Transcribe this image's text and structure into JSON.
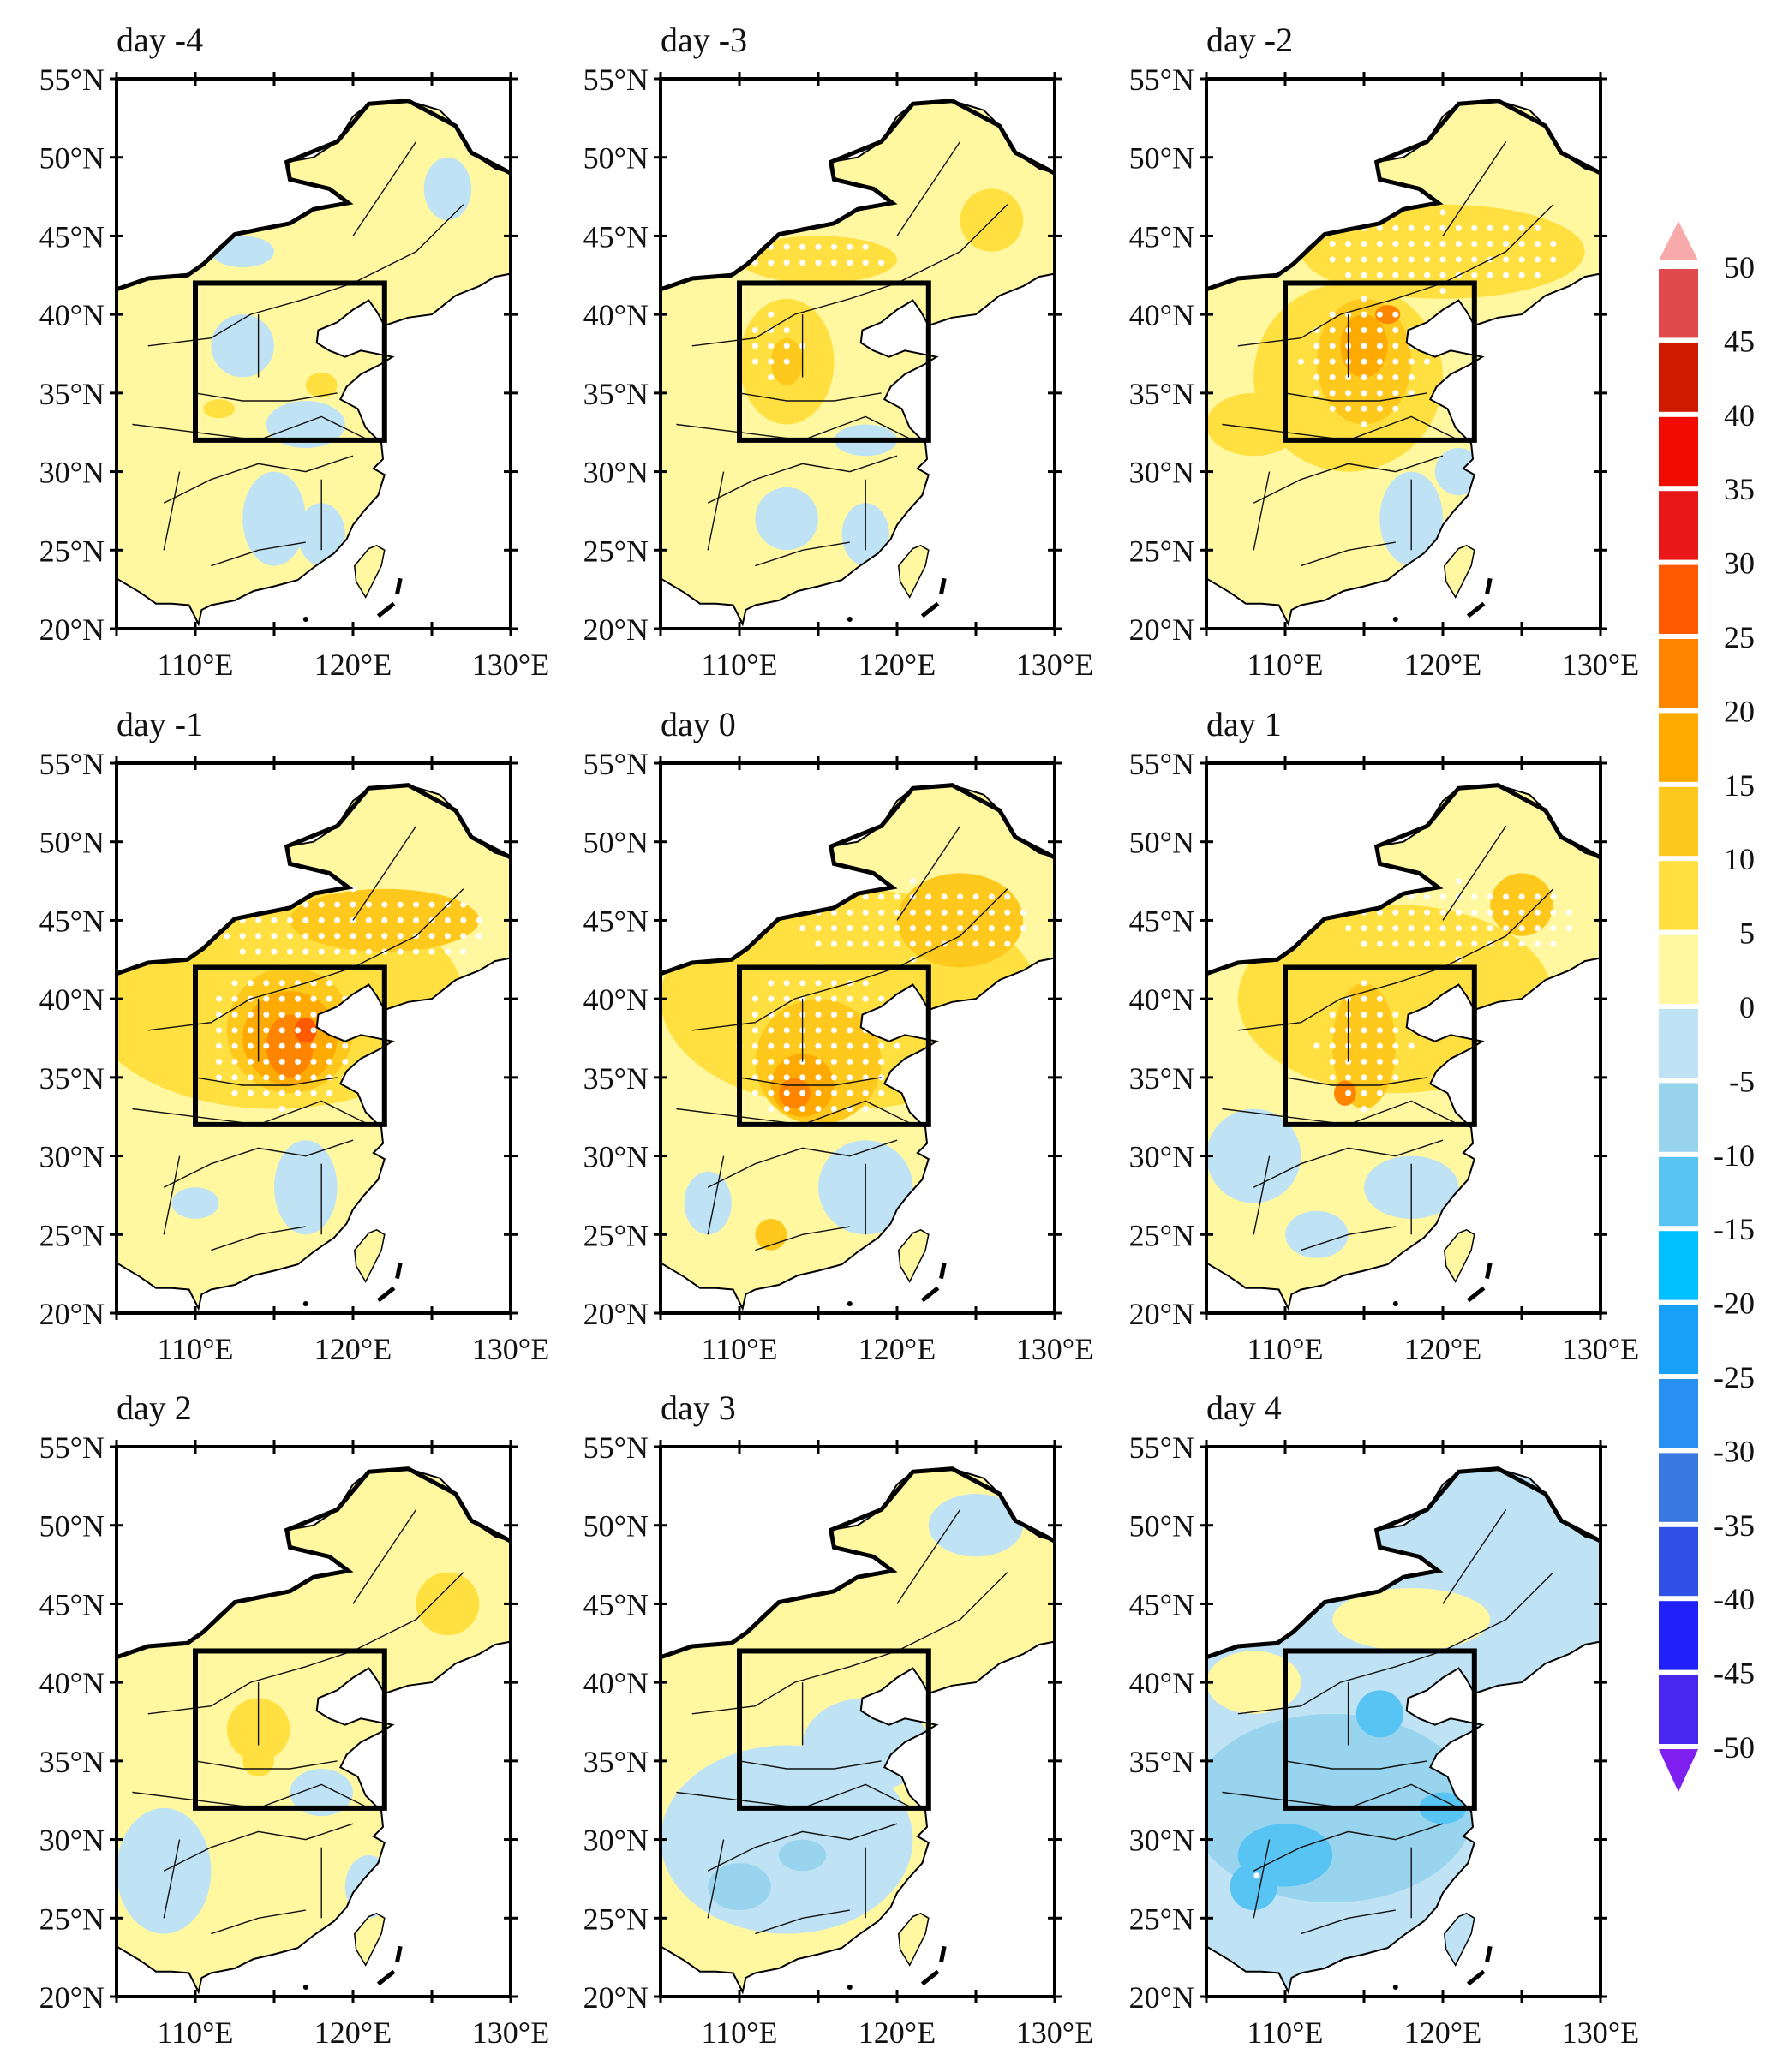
{
  "chart_data": {
    "type": "heatmap",
    "title": "",
    "lon_range": [
      105,
      130
    ],
    "lat_range": [
      20,
      55
    ],
    "lon_ticks": [
      110,
      120,
      130
    ],
    "lon_tick_labels": [
      "110°E",
      "120°E",
      "130°E"
    ],
    "lat_ticks": [
      55,
      50,
      45,
      40,
      35,
      30,
      25,
      20
    ],
    "lat_tick_labels": [
      "55°N",
      "50°N",
      "45°N",
      "40°N",
      "35°N",
      "30°N",
      "25°N",
      "20°N"
    ],
    "box_region": {
      "lon": [
        110,
        122
      ],
      "lat": [
        32,
        42
      ]
    },
    "colorbar": {
      "labels": [
        "50",
        "45",
        "40",
        "35",
        "30",
        "25",
        "20",
        "15",
        "10",
        "5",
        "0",
        "-5",
        "-10",
        "-15",
        "-20",
        "-25",
        "-30",
        "-35",
        "-40",
        "-45",
        "-50"
      ],
      "over_color": "#f8aaaa",
      "under_color": "#8020f0",
      "colors": [
        "#e04a4a",
        "#d01a00",
        "#f00c00",
        "#e81818",
        "#ff5a00",
        "#ff8400",
        "#ffaa00",
        "#ffc81c",
        "#ffe040",
        "#fff8a0",
        "#bfe3f5",
        "#98d4ee",
        "#58c4f4",
        "#00c0ff",
        "#18a0f8",
        "#2890f0",
        "#3878e0",
        "#3050e8",
        "#2020f8",
        "#4828f0"
      ],
      "level_bounds": [
        [
          45,
          50
        ],
        [
          40,
          45
        ],
        [
          35,
          40
        ],
        [
          30,
          35
        ],
        [
          25,
          30
        ],
        [
          20,
          25
        ],
        [
          15,
          20
        ],
        [
          10,
          15
        ],
        [
          5,
          10
        ],
        [
          0,
          5
        ],
        [
          -5,
          0
        ],
        [
          -10,
          -5
        ],
        [
          -15,
          -10
        ],
        [
          -20,
          -15
        ],
        [
          -25,
          -20
        ],
        [
          -30,
          -25
        ],
        [
          -35,
          -30
        ],
        [
          -40,
          -35
        ],
        [
          -45,
          -40
        ],
        [
          -50,
          -45
        ]
      ]
    },
    "panels": [
      {
        "title": "day -4",
        "base": 2.5,
        "anomalies": [
          [
            113,
            38,
            2,
            2,
            -2.5
          ],
          [
            117,
            33,
            2.5,
            1.5,
            -2.5
          ],
          [
            115,
            27,
            2,
            3,
            -2.5
          ],
          [
            118,
            26,
            1.5,
            2,
            -2.5
          ],
          [
            126,
            48,
            1.5,
            2,
            -2.5
          ],
          [
            113,
            44,
            2,
            1,
            -2.5
          ],
          [
            111.5,
            34,
            1,
            0.6,
            7.5
          ],
          [
            118,
            35.5,
            1,
            0.8,
            7.5
          ]
        ],
        "stipple": []
      },
      {
        "title": "day -3",
        "base": 2.5,
        "anomalies": [
          [
            115,
            43.5,
            5,
            1.5,
            7.5
          ],
          [
            113,
            37,
            3,
            4,
            7.5
          ],
          [
            126,
            46,
            2,
            2,
            7.5
          ],
          [
            113,
            37,
            1,
            1.5,
            12.5
          ],
          [
            113,
            27,
            2,
            2,
            -2.5
          ],
          [
            118,
            26,
            1.5,
            2,
            -2.5
          ],
          [
            118,
            32,
            2,
            1,
            -2.5
          ]
        ],
        "stipple": [
          [
            115,
            43.5,
            5,
            1.2
          ],
          [
            112,
            38,
            2,
            2
          ]
        ]
      },
      {
        "title": "day -2",
        "base": 2.5,
        "anomalies": [
          [
            120,
            44,
            9,
            3,
            7.5
          ],
          [
            114,
            36,
            6,
            6,
            7.5
          ],
          [
            115,
            37,
            3,
            4,
            12.5
          ],
          [
            108,
            33,
            3,
            2,
            7.5
          ],
          [
            115,
            38,
            1.5,
            2,
            17.5
          ],
          [
            116.5,
            40,
            0.8,
            0.6,
            22.5
          ],
          [
            118,
            27,
            2,
            3,
            -2.5
          ],
          [
            121,
            30,
            1.5,
            1.5,
            -2.5
          ]
        ],
        "stipple": [
          [
            120,
            44,
            8,
            2.5
          ],
          [
            115,
            37,
            4,
            4
          ]
        ]
      },
      {
        "title": "day -1",
        "base": 2.5,
        "anomalies": [
          [
            115,
            40,
            12,
            7,
            7.5
          ],
          [
            116,
            38,
            4,
            4,
            12.5
          ],
          [
            122,
            45,
            6,
            2,
            12.5
          ],
          [
            116,
            37.5,
            3,
            3,
            17.5
          ],
          [
            116,
            37,
            1.5,
            2,
            22.5
          ],
          [
            117,
            38,
            0.7,
            0.8,
            27.5
          ],
          [
            117,
            28,
            2,
            3,
            -2.5
          ],
          [
            110,
            27,
            1.5,
            1,
            -2.5
          ]
        ],
        "stipple": [
          [
            120,
            44.5,
            9,
            2.5
          ],
          [
            115.5,
            37.5,
            5,
            4.5
          ]
        ]
      },
      {
        "title": "day 0",
        "base": 2.5,
        "anomalies": [
          [
            117,
            40,
            12,
            7,
            7.5
          ],
          [
            124,
            45,
            4,
            3,
            12.5
          ],
          [
            115,
            36,
            4,
            4,
            12.5
          ],
          [
            114,
            34.5,
            2,
            2,
            17.5
          ],
          [
            113.5,
            34,
            1,
            1,
            22.5
          ],
          [
            118,
            28,
            3,
            3,
            -2.5
          ],
          [
            108,
            27,
            1.5,
            2,
            -2.5
          ],
          [
            112,
            25,
            1,
            1,
            12.5
          ]
        ],
        "stipple": [
          [
            121,
            45,
            8,
            2.5
          ],
          [
            115,
            37,
            5,
            5
          ]
        ]
      },
      {
        "title": "day 1",
        "base": 2.5,
        "anomalies": [
          [
            117,
            40,
            10,
            6,
            7.5
          ],
          [
            115,
            37,
            2,
            4,
            12.5
          ],
          [
            125,
            46,
            2,
            2,
            12.5
          ],
          [
            113.8,
            34,
            0.7,
            0.8,
            22.5
          ],
          [
            108,
            30,
            3,
            3,
            -2.5
          ],
          [
            118,
            28,
            3,
            2,
            -2.5
          ],
          [
            112,
            25,
            2,
            1.5,
            -2.5
          ]
        ],
        "stipple": [
          [
            121,
            45,
            8,
            2.5
          ],
          [
            115,
            37,
            3,
            4
          ]
        ]
      },
      {
        "title": "day 2",
        "base": 2.5,
        "anomalies": [
          [
            108,
            28,
            3,
            4,
            -2.5
          ],
          [
            118,
            33,
            2,
            1.5,
            -2.5
          ],
          [
            121,
            27,
            1.5,
            2,
            -2.5
          ],
          [
            114,
            37,
            2,
            2,
            7.5
          ],
          [
            126,
            45,
            2,
            2,
            7.5
          ],
          [
            114,
            35,
            1,
            1,
            7.5
          ]
        ],
        "stipple": []
      },
      {
        "title": "day 3",
        "base": 2.5,
        "anomalies": [
          [
            113,
            30,
            8,
            6,
            -2.5
          ],
          [
            118,
            36,
            4,
            3,
            -2.5
          ],
          [
            125,
            50,
            3,
            2,
            -2.5
          ],
          [
            110,
            27,
            2,
            1.5,
            -7.5
          ],
          [
            114,
            29,
            1.5,
            1,
            -7.5
          ]
        ],
        "stipple": []
      },
      {
        "title": "day 4",
        "base": -2.5,
        "anomalies": [
          [
            118,
            44,
            5,
            2,
            2.5
          ],
          [
            108,
            40,
            3,
            2,
            2.5
          ],
          [
            113,
            32,
            9,
            6,
            -7.5
          ],
          [
            116,
            38,
            1.5,
            1.5,
            -12.5
          ],
          [
            110,
            29,
            3,
            2,
            -12.5
          ],
          [
            120,
            32,
            1.5,
            1,
            -12.5
          ],
          [
            108,
            27,
            1.5,
            1.5,
            -12.5
          ]
        ],
        "stipple": [
          [
            108,
            27.5,
            0.8,
            0.8
          ]
        ]
      }
    ]
  }
}
